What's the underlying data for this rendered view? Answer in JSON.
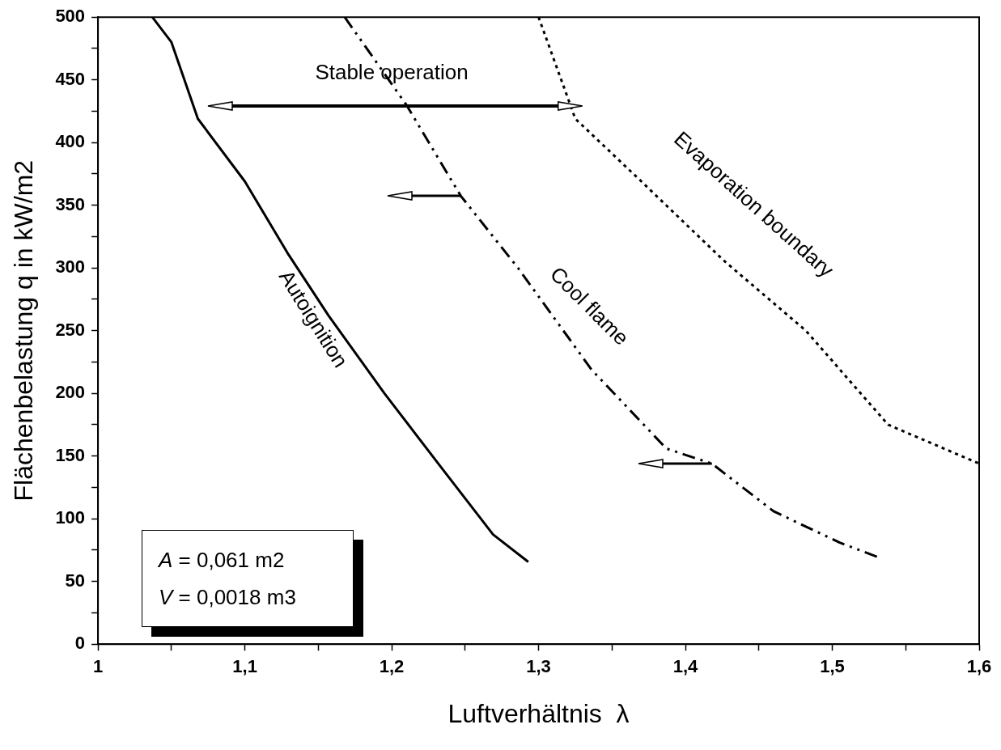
{
  "chart_data": {
    "type": "line",
    "xlabel": "Luftverhältnis  λ",
    "ylabel": "Flächenbelastung q in kW/m2",
    "xlim": [
      1,
      1.6
    ],
    "ylim": [
      0,
      500
    ],
    "xticks": [
      {
        "value": 1,
        "label": "1"
      },
      {
        "value": 1.05,
        "label": null
      },
      {
        "value": 1.1,
        "label": "1,1"
      },
      {
        "value": 1.15,
        "label": null
      },
      {
        "value": 1.2,
        "label": "1,2"
      },
      {
        "value": 1.25,
        "label": null
      },
      {
        "value": 1.3,
        "label": "1,3"
      },
      {
        "value": 1.35,
        "label": null
      },
      {
        "value": 1.4,
        "label": "1,4"
      },
      {
        "value": 1.45,
        "label": null
      },
      {
        "value": 1.5,
        "label": "1,5"
      },
      {
        "value": 1.55,
        "label": null
      },
      {
        "value": 1.6,
        "label": "1,6"
      }
    ],
    "yticks": [
      0,
      {
        "value": 25,
        "label": null
      },
      50,
      {
        "value": 75,
        "label": null
      },
      100,
      {
        "value": 125,
        "label": null
      },
      150,
      {
        "value": 175,
        "label": null
      },
      200,
      {
        "value": 225,
        "label": null
      },
      250,
      {
        "value": 275,
        "label": null
      },
      300,
      {
        "value": 325,
        "label": null
      },
      350,
      {
        "value": 375,
        "label": null
      },
      400,
      {
        "value": 425,
        "label": null
      },
      450,
      {
        "value": 475,
        "label": null
      },
      500
    ],
    "grid": false,
    "legend": false,
    "marker": "none",
    "series": [
      {
        "color": "#000000",
        "line_style": "solid",
        "x": [
          1.037,
          1.05,
          1.068,
          1.1,
          1.129,
          1.157,
          1.195,
          1.236,
          1.269,
          1.293
        ],
        "values": [
          500,
          480,
          419,
          369,
          312,
          262,
          200,
          137.5,
          87.5,
          65.6
        ]
      },
      {
        "color": "#000000",
        "line_style": "dashed",
        "x": [
          1.168,
          1.21,
          1.247,
          1.286,
          1.336,
          1.387,
          1.418,
          1.46,
          1.505,
          1.532
        ],
        "values": [
          500,
          430,
          357.5,
          300,
          219,
          156,
          144,
          106,
          81,
          69
        ]
      },
      {
        "color": "#000000",
        "line_style": "dotted",
        "x": [
          1.3,
          1.325,
          1.37,
          1.426,
          1.482,
          1.538,
          1.6
        ],
        "values": [
          500,
          419,
          369,
          306,
          250,
          175,
          144
        ]
      }
    ],
    "annotations": [
      "Stable operation",
      "Autoignition",
      "Cool flame",
      "Evaporation boundary",
      "A = 0,061 m2",
      "V = 0,0018 m3"
    ]
  }
}
